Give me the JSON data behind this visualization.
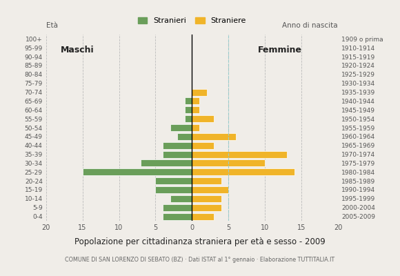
{
  "age_groups_bottom_to_top": [
    "0-4",
    "5-9",
    "10-14",
    "15-19",
    "20-24",
    "25-29",
    "30-34",
    "35-39",
    "40-44",
    "45-49",
    "50-54",
    "55-59",
    "60-64",
    "65-69",
    "70-74",
    "75-79",
    "80-84",
    "85-89",
    "90-94",
    "95-99",
    "100+"
  ],
  "birth_years_bottom_to_top": [
    "2005-2009",
    "2000-2004",
    "1995-1999",
    "1990-1994",
    "1985-1989",
    "1980-1984",
    "1975-1979",
    "1970-1974",
    "1965-1969",
    "1960-1964",
    "1955-1959",
    "1950-1954",
    "1945-1949",
    "1940-1944",
    "1935-1939",
    "1930-1934",
    "1925-1929",
    "1920-1924",
    "1915-1919",
    "1910-1914",
    "1909 o prima"
  ],
  "males_bottom_to_top": [
    4,
    4,
    3,
    5,
    5,
    15,
    7,
    4,
    4,
    2,
    3,
    1,
    1,
    1,
    0,
    0,
    0,
    0,
    0,
    0,
    0
  ],
  "females_bottom_to_top": [
    3,
    4,
    4,
    5,
    4,
    14,
    10,
    13,
    3,
    6,
    1,
    3,
    1,
    1,
    2,
    0,
    0,
    0,
    0,
    0,
    0
  ],
  "male_color": "#6a9e5a",
  "female_color": "#f0b429",
  "title": "Popolazione per cittadinanza straniera per età e sesso - 2009",
  "subtitle": "COMUNE DI SAN LORENZO DI SEBATO (BZ) · Dati ISTAT al 1° gennaio · Elaborazione TUTTITALIA.IT",
  "legend_male": "Stranieri",
  "legend_female": "Straniere",
  "label_maschi": "Maschi",
  "label_femmine": "Femmine",
  "xlim": 20,
  "background_color": "#f0ede8",
  "grid_color": "#bbbbbb",
  "bar_edge_color": "white",
  "dashed_line_color": "#99cccc"
}
